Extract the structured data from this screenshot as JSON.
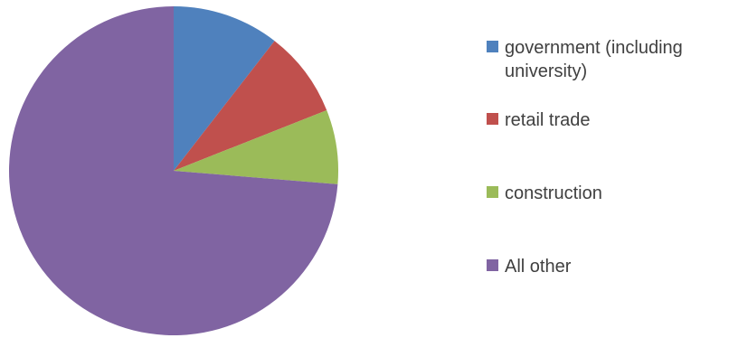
{
  "chart_data": {
    "type": "pie",
    "title": "",
    "categories": [
      "government (including university)",
      "retail trade",
      "construction",
      "All other"
    ],
    "values": [
      10.5,
      8.5,
      7.3,
      73.7
    ],
    "colors": [
      "#4F81BD",
      "#C0504D",
      "#9BBB59",
      "#8064A2"
    ],
    "start": "12 o'clock, clockwise",
    "legend_position": "right"
  },
  "legend": {
    "items": [
      {
        "label": "government (including university)",
        "color": "#4F81BD"
      },
      {
        "label": "retail trade",
        "color": "#C0504D"
      },
      {
        "label": "construction",
        "color": "#9BBB59"
      },
      {
        "label": "All other",
        "color": "#8064A2"
      }
    ]
  }
}
